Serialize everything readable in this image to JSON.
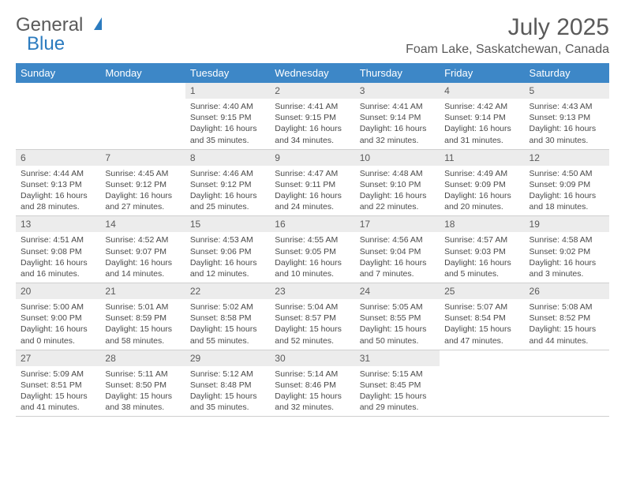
{
  "logo": {
    "word1": "General",
    "word2": "Blue"
  },
  "title": "July 2025",
  "location": "Foam Lake, Saskatchewan, Canada",
  "colors": {
    "header_bg": "#3d87c7",
    "header_text": "#ffffff",
    "daynum_bg": "#ececec",
    "text": "#5a5a5a",
    "rule": "#cfcfcf",
    "accent": "#2b7bbf"
  },
  "weekdays": [
    "Sunday",
    "Monday",
    "Tuesday",
    "Wednesday",
    "Thursday",
    "Friday",
    "Saturday"
  ],
  "grid": {
    "first_weekday_index": 2,
    "days": [
      {
        "n": 1,
        "sunrise": "4:40 AM",
        "sunset": "9:15 PM",
        "daylight": "16 hours and 35 minutes."
      },
      {
        "n": 2,
        "sunrise": "4:41 AM",
        "sunset": "9:15 PM",
        "daylight": "16 hours and 34 minutes."
      },
      {
        "n": 3,
        "sunrise": "4:41 AM",
        "sunset": "9:14 PM",
        "daylight": "16 hours and 32 minutes."
      },
      {
        "n": 4,
        "sunrise": "4:42 AM",
        "sunset": "9:14 PM",
        "daylight": "16 hours and 31 minutes."
      },
      {
        "n": 5,
        "sunrise": "4:43 AM",
        "sunset": "9:13 PM",
        "daylight": "16 hours and 30 minutes."
      },
      {
        "n": 6,
        "sunrise": "4:44 AM",
        "sunset": "9:13 PM",
        "daylight": "16 hours and 28 minutes."
      },
      {
        "n": 7,
        "sunrise": "4:45 AM",
        "sunset": "9:12 PM",
        "daylight": "16 hours and 27 minutes."
      },
      {
        "n": 8,
        "sunrise": "4:46 AM",
        "sunset": "9:12 PM",
        "daylight": "16 hours and 25 minutes."
      },
      {
        "n": 9,
        "sunrise": "4:47 AM",
        "sunset": "9:11 PM",
        "daylight": "16 hours and 24 minutes."
      },
      {
        "n": 10,
        "sunrise": "4:48 AM",
        "sunset": "9:10 PM",
        "daylight": "16 hours and 22 minutes."
      },
      {
        "n": 11,
        "sunrise": "4:49 AM",
        "sunset": "9:09 PM",
        "daylight": "16 hours and 20 minutes."
      },
      {
        "n": 12,
        "sunrise": "4:50 AM",
        "sunset": "9:09 PM",
        "daylight": "16 hours and 18 minutes."
      },
      {
        "n": 13,
        "sunrise": "4:51 AM",
        "sunset": "9:08 PM",
        "daylight": "16 hours and 16 minutes."
      },
      {
        "n": 14,
        "sunrise": "4:52 AM",
        "sunset": "9:07 PM",
        "daylight": "16 hours and 14 minutes."
      },
      {
        "n": 15,
        "sunrise": "4:53 AM",
        "sunset": "9:06 PM",
        "daylight": "16 hours and 12 minutes."
      },
      {
        "n": 16,
        "sunrise": "4:55 AM",
        "sunset": "9:05 PM",
        "daylight": "16 hours and 10 minutes."
      },
      {
        "n": 17,
        "sunrise": "4:56 AM",
        "sunset": "9:04 PM",
        "daylight": "16 hours and 7 minutes."
      },
      {
        "n": 18,
        "sunrise": "4:57 AM",
        "sunset": "9:03 PM",
        "daylight": "16 hours and 5 minutes."
      },
      {
        "n": 19,
        "sunrise": "4:58 AM",
        "sunset": "9:02 PM",
        "daylight": "16 hours and 3 minutes."
      },
      {
        "n": 20,
        "sunrise": "5:00 AM",
        "sunset": "9:00 PM",
        "daylight": "16 hours and 0 minutes."
      },
      {
        "n": 21,
        "sunrise": "5:01 AM",
        "sunset": "8:59 PM",
        "daylight": "15 hours and 58 minutes."
      },
      {
        "n": 22,
        "sunrise": "5:02 AM",
        "sunset": "8:58 PM",
        "daylight": "15 hours and 55 minutes."
      },
      {
        "n": 23,
        "sunrise": "5:04 AM",
        "sunset": "8:57 PM",
        "daylight": "15 hours and 52 minutes."
      },
      {
        "n": 24,
        "sunrise": "5:05 AM",
        "sunset": "8:55 PM",
        "daylight": "15 hours and 50 minutes."
      },
      {
        "n": 25,
        "sunrise": "5:07 AM",
        "sunset": "8:54 PM",
        "daylight": "15 hours and 47 minutes."
      },
      {
        "n": 26,
        "sunrise": "5:08 AM",
        "sunset": "8:52 PM",
        "daylight": "15 hours and 44 minutes."
      },
      {
        "n": 27,
        "sunrise": "5:09 AM",
        "sunset": "8:51 PM",
        "daylight": "15 hours and 41 minutes."
      },
      {
        "n": 28,
        "sunrise": "5:11 AM",
        "sunset": "8:50 PM",
        "daylight": "15 hours and 38 minutes."
      },
      {
        "n": 29,
        "sunrise": "5:12 AM",
        "sunset": "8:48 PM",
        "daylight": "15 hours and 35 minutes."
      },
      {
        "n": 30,
        "sunrise": "5:14 AM",
        "sunset": "8:46 PM",
        "daylight": "15 hours and 32 minutes."
      },
      {
        "n": 31,
        "sunrise": "5:15 AM",
        "sunset": "8:45 PM",
        "daylight": "15 hours and 29 minutes."
      }
    ]
  },
  "labels": {
    "sunrise_prefix": "Sunrise: ",
    "sunset_prefix": "Sunset: ",
    "daylight_prefix": "Daylight: "
  }
}
